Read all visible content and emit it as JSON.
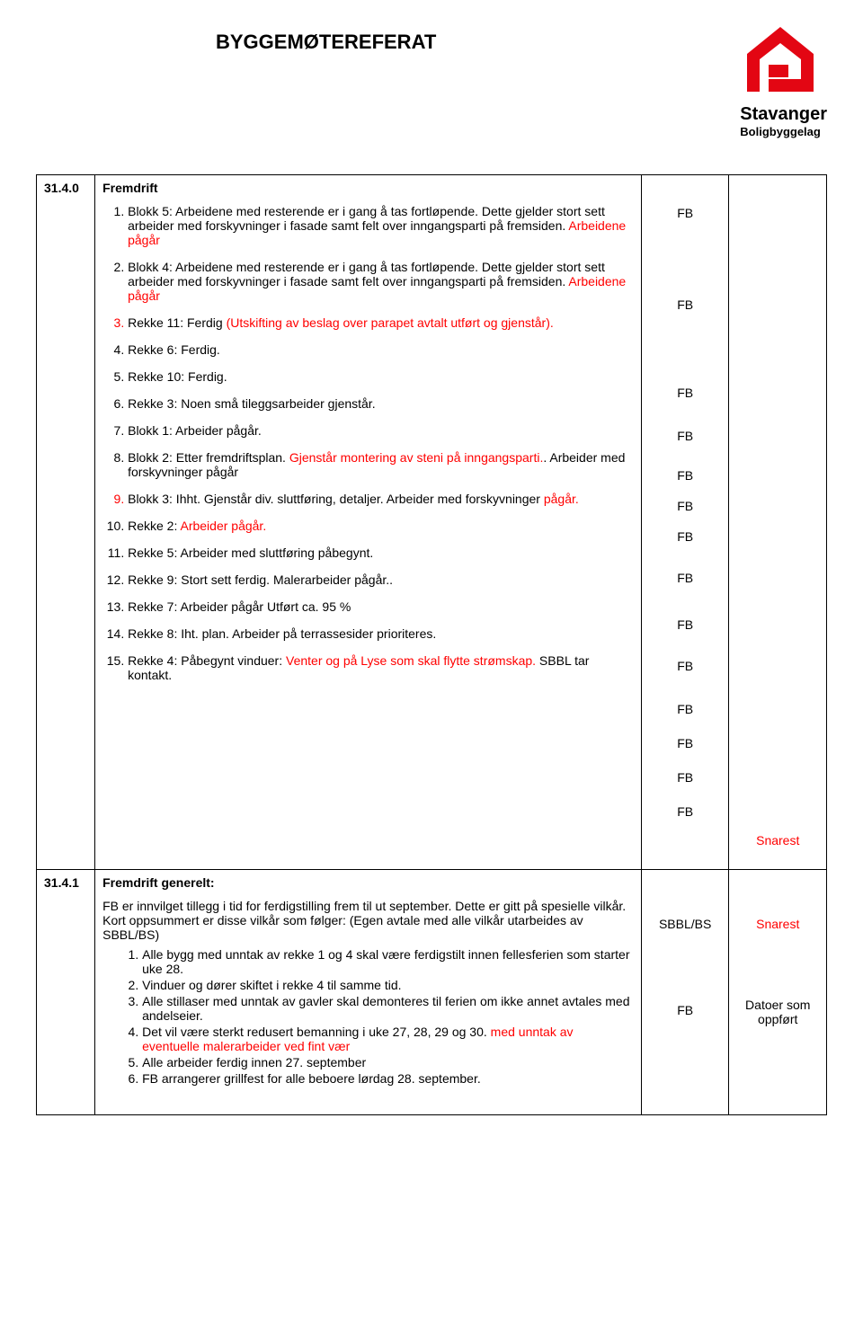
{
  "header": {
    "title": "BYGGEMØTEREFERAT",
    "logo_name": "Stavanger",
    "logo_sub": "Boligbyggelag",
    "logo_color": "#e30613"
  },
  "section_31_4_0": {
    "id": "31.4.0",
    "title": "Fremdrift",
    "items": [
      {
        "num_red": false,
        "resp": "FB",
        "parts": [
          {
            "t": "Blokk 5: Arbeidene med resterende er i gang å tas fortløpende. Dette gjelder stort sett arbeider med forskyvninger i fasade samt felt over inngangsparti på fremsiden.",
            "red": false
          },
          {
            "t": " Arbeidene pågår",
            "red": true
          }
        ]
      },
      {
        "num_red": false,
        "resp": "FB",
        "parts": [
          {
            "t": "Blokk 4: Arbeidene med resterende er i gang å tas fortløpende. Dette gjelder stort sett arbeider med forskyvninger i fasade samt felt over inngangsparti på fremsiden.",
            "red": false
          },
          {
            "t": " Arbeidene pågår",
            "red": true
          }
        ]
      },
      {
        "num_red": true,
        "resp": "FB",
        "parts": [
          {
            "t": "Rekke 11: Ferdig ",
            "red": false
          },
          {
            "t": "(Utskifting av beslag over parapet avtalt utført og gjenstår).",
            "red": true
          }
        ]
      },
      {
        "num_red": false,
        "resp": "FB",
        "parts": [
          {
            "t": "Rekke 6: Ferdig.",
            "red": false
          }
        ]
      },
      {
        "num_red": false,
        "resp": "FB",
        "parts": [
          {
            "t": "Rekke 10: Ferdig.",
            "red": false
          }
        ]
      },
      {
        "num_red": false,
        "resp": "FB",
        "parts": [
          {
            "t": "Rekke 3: Noen små tileggsarbeider gjenstår.",
            "red": false
          }
        ]
      },
      {
        "num_red": false,
        "resp": "FB",
        "parts": [
          {
            "t": "Blokk 1: Arbeider pågår.",
            "red": false
          }
        ]
      },
      {
        "num_red": false,
        "resp": "FB",
        "parts": [
          {
            "t": "Blokk 2: Etter fremdriftsplan. ",
            "red": false
          },
          {
            "t": "Gjenstår montering av steni på inngangsparti.",
            "red": true
          },
          {
            "t": ". Arbeider med forskyvninger pågår",
            "red": false
          }
        ]
      },
      {
        "num_red": true,
        "resp": "FB",
        "parts": [
          {
            "t": "Blokk 3: Ihht. Gjenstår div. sluttføring, detaljer. Arbeider med forskyvninger ",
            "red": false
          },
          {
            "t": "pågår.",
            "red": true
          }
        ]
      },
      {
        "num_red": false,
        "resp": "FB",
        "parts": [
          {
            "t": "Rekke 2: ",
            "red": false
          },
          {
            "t": "Arbeider pågår.",
            "red": true
          }
        ]
      },
      {
        "num_red": false,
        "resp": "FB",
        "parts": [
          {
            "t": "Rekke 5: Arbeider med sluttføring påbegynt.",
            "red": false
          }
        ]
      },
      {
        "num_red": false,
        "resp": "FB",
        "parts": [
          {
            "t": "Rekke 9: Stort sett ferdig. Malerarbeider pågår..",
            "red": false
          }
        ]
      },
      {
        "num_red": false,
        "resp": "FB",
        "parts": [
          {
            "t": "Rekke 7: Arbeider pågår Utført ca. 95 %",
            "red": false
          }
        ]
      },
      {
        "num_red": false,
        "resp": "FB",
        "parts": [
          {
            "t": "Rekke 8: Iht. plan. Arbeider på terrassesider prioriteres.",
            "red": false
          }
        ]
      },
      {
        "num_red": false,
        "resp": "",
        "due": "Snarest",
        "due_red": true,
        "parts": [
          {
            "t": "Rekke 4: Påbegynt vinduer: ",
            "red": false
          },
          {
            "t": "Venter og på Lyse som skal flytte strømskap.",
            "red": true
          },
          {
            "t": " SBBL tar kontakt.",
            "red": false
          }
        ]
      }
    ]
  },
  "section_31_4_1": {
    "id": "31.4.1",
    "title": "Fremdrift generelt:",
    "intro": "FB er innvilget tillegg i tid for ferdigstilling frem til ut september. Dette er gitt på spesielle vilkår. Kort oppsummert er disse vilkår som følger: (Egen avtale med alle vilkår utarbeides av SBBL/BS)",
    "resp_entries": [
      {
        "text": "SBBL/BS",
        "red": false
      },
      {
        "text": "FB",
        "red": false
      }
    ],
    "due_entries": [
      {
        "text": "Snarest",
        "red": true
      },
      {
        "text": "Datoer som oppført",
        "red": false
      }
    ],
    "sublist": [
      {
        "parts": [
          {
            "t": "Alle bygg med unntak av rekke 1 og 4 skal være ferdigstilt innen fellesferien som starter uke 28.",
            "red": false
          }
        ]
      },
      {
        "parts": [
          {
            "t": "Vinduer og dører skiftet i rekke 4 til samme tid.",
            "red": false
          }
        ]
      },
      {
        "parts": [
          {
            "t": "Alle stillaser med unntak av gavler skal demonteres til ferien om ikke annet avtales med andelseier.",
            "red": false
          }
        ]
      },
      {
        "parts": [
          {
            "t": "Det vil være sterkt redusert bemanning i uke 27, 28, 29 og 30. ",
            "red": false
          },
          {
            "t": "med unntak av eventuelle malerarbeider ved fint vær",
            "red": true
          }
        ]
      },
      {
        "parts": [
          {
            "t": "Alle arbeider ferdig innen 27. september",
            "red": false
          }
        ]
      },
      {
        "parts": [
          {
            "t": "FB arrangerer grillfest for alle beboere lørdag 28. september.",
            "red": false
          }
        ]
      }
    ]
  }
}
